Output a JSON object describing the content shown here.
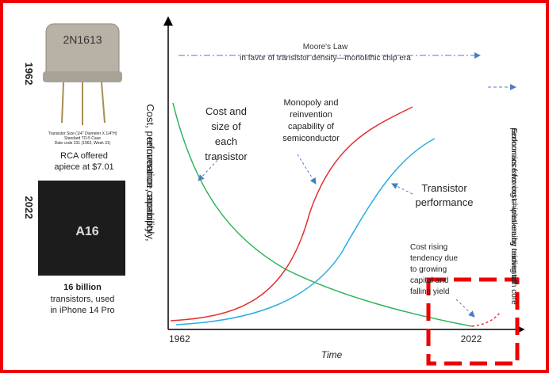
{
  "left_panel": {
    "top_year": "1962",
    "transistor_marking": "2N1613",
    "caption": [
      "Transistor Size (1/4\" Diameter X 1/4\"H)",
      "Standard TO-5 Case",
      "Date code 231 (1962, Week 31)"
    ],
    "top_text": [
      "RCA offered",
      "apiece at $7.01"
    ],
    "bottom_year": "2022",
    "chip_name": "A16",
    "bottom_title": "16 billion",
    "bottom_text": [
      "transistors, used",
      "in iPhone 14 Pro"
    ]
  },
  "diagram": {
    "y_axis_label": [
      "Cost, performance, monopoly,",
      "reinvention capability"
    ],
    "x_axis_label": "Time",
    "x_start": "1962",
    "x_end": "2022",
    "moores_law": [
      "Moore's Law",
      "in favor of transistor density—monolithic chip era"
    ],
    "cost_label": [
      "Cost and",
      "size of",
      "each",
      "transistor"
    ],
    "monopoly_label": [
      "Monopoly and",
      "reinvention",
      "capability of",
      "semiconductor"
    ],
    "performance_label": [
      "Transistor",
      "performance"
    ],
    "rising_label": [
      "Cost rising",
      "tendency due",
      "to growing",
      "capital and",
      "falling yield"
    ],
    "chiplet_label": [
      "Economics favoring chiplet era by trading off",
      "performance for cost—weakening reinvention core"
    ]
  }
}
